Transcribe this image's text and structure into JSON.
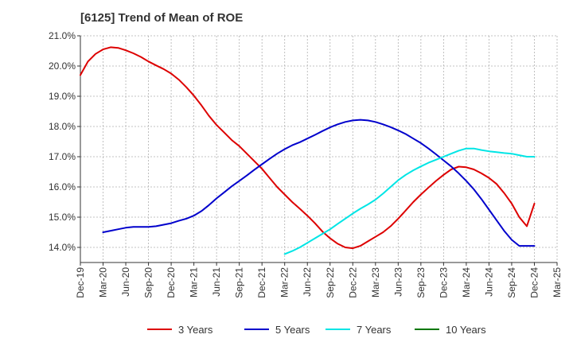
{
  "chart_data": {
    "type": "line",
    "title": "[6125]  Trend of Mean of ROE",
    "xlabel": "",
    "ylabel": "",
    "x_ticks": [
      "Dec-19",
      "Mar-20",
      "Jun-20",
      "Sep-20",
      "Dec-20",
      "Mar-21",
      "Jun-21",
      "Sep-21",
      "Dec-21",
      "Mar-22",
      "Jun-22",
      "Sep-22",
      "Dec-22",
      "Mar-23",
      "Jun-23",
      "Sep-23",
      "Dec-23",
      "Mar-24",
      "Jun-24",
      "Sep-24",
      "Dec-24",
      "Mar-25"
    ],
    "y_ticks": [
      "14.0%",
      "15.0%",
      "16.0%",
      "17.0%",
      "18.0%",
      "19.0%",
      "20.0%",
      "21.0%"
    ],
    "y_tick_values": [
      14,
      15,
      16,
      17,
      18,
      19,
      20,
      21
    ],
    "ylim": [
      13.5,
      21.0
    ],
    "grid": true,
    "legend_position": "bottom",
    "series": [
      {
        "name": "3 Years",
        "color": "#dd0000",
        "x": [
          "Dec-19",
          "Jan-20",
          "Feb-20",
          "Mar-20",
          "Apr-20",
          "May-20",
          "Jun-20",
          "Jul-20",
          "Aug-20",
          "Sep-20",
          "Oct-20",
          "Nov-20",
          "Dec-20",
          "Jan-21",
          "Feb-21",
          "Mar-21",
          "Apr-21",
          "May-21",
          "Jun-21",
          "Jul-21",
          "Aug-21",
          "Sep-21",
          "Oct-21",
          "Nov-21",
          "Dec-21",
          "Jan-22",
          "Feb-22",
          "Mar-22",
          "Apr-22",
          "May-22",
          "Jun-22",
          "Jul-22",
          "Aug-22",
          "Sep-22",
          "Oct-22",
          "Nov-22",
          "Dec-22",
          "Jan-23",
          "Feb-23",
          "Mar-23",
          "Apr-23",
          "May-23",
          "Jun-23",
          "Jul-23",
          "Aug-23",
          "Sep-23",
          "Oct-23",
          "Nov-23",
          "Dec-23",
          "Jan-24",
          "Feb-24",
          "Mar-24",
          "Apr-24",
          "May-24",
          "Jun-24",
          "Jul-24",
          "Aug-24",
          "Sep-24",
          "Oct-24",
          "Nov-24",
          "Dec-24"
        ],
        "values": [
          19.7,
          20.15,
          20.4,
          20.55,
          20.62,
          20.6,
          20.52,
          20.42,
          20.3,
          20.15,
          20.02,
          19.9,
          19.75,
          19.55,
          19.3,
          19.02,
          18.7,
          18.35,
          18.05,
          17.8,
          17.55,
          17.35,
          17.1,
          16.85,
          16.6,
          16.3,
          16.0,
          15.75,
          15.5,
          15.28,
          15.05,
          14.8,
          14.52,
          14.3,
          14.12,
          14.0,
          13.97,
          14.05,
          14.2,
          14.35,
          14.5,
          14.7,
          14.95,
          15.22,
          15.5,
          15.75,
          15.98,
          16.2,
          16.4,
          16.58,
          16.67,
          16.65,
          16.58,
          16.45,
          16.3,
          16.1,
          15.8,
          15.45,
          15.0,
          14.7,
          15.45
        ]
      },
      {
        "name": "5 Years",
        "color": "#0000cc",
        "x": [
          "Mar-20",
          "Apr-20",
          "May-20",
          "Jun-20",
          "Jul-20",
          "Aug-20",
          "Sep-20",
          "Oct-20",
          "Nov-20",
          "Dec-20",
          "Jan-21",
          "Feb-21",
          "Mar-21",
          "Apr-21",
          "May-21",
          "Jun-21",
          "Jul-21",
          "Aug-21",
          "Sep-21",
          "Oct-21",
          "Nov-21",
          "Dec-21",
          "Jan-22",
          "Feb-22",
          "Mar-22",
          "Apr-22",
          "May-22",
          "Jun-22",
          "Jul-22",
          "Aug-22",
          "Sep-22",
          "Oct-22",
          "Nov-22",
          "Dec-22",
          "Jan-23",
          "Feb-23",
          "Mar-23",
          "Apr-23",
          "May-23",
          "Jun-23",
          "Jul-23",
          "Aug-23",
          "Sep-23",
          "Oct-23",
          "Nov-23",
          "Dec-23",
          "Jan-24",
          "Feb-24",
          "Mar-24",
          "Apr-24",
          "May-24",
          "Jun-24",
          "Jul-24",
          "Aug-24",
          "Sep-24",
          "Oct-24",
          "Nov-24",
          "Dec-24"
        ],
        "values": [
          14.5,
          14.55,
          14.6,
          14.65,
          14.68,
          14.68,
          14.68,
          14.7,
          14.75,
          14.8,
          14.88,
          14.95,
          15.05,
          15.2,
          15.4,
          15.62,
          15.82,
          16.02,
          16.2,
          16.38,
          16.57,
          16.75,
          16.93,
          17.1,
          17.25,
          17.38,
          17.48,
          17.6,
          17.72,
          17.85,
          17.97,
          18.07,
          18.15,
          18.2,
          18.22,
          18.2,
          18.15,
          18.07,
          17.98,
          17.87,
          17.75,
          17.6,
          17.45,
          17.27,
          17.08,
          16.88,
          16.68,
          16.45,
          16.2,
          15.92,
          15.6,
          15.25,
          14.9,
          14.55,
          14.25,
          14.05,
          14.05,
          14.05
        ]
      },
      {
        "name": "7 Years",
        "color": "#00e5e5",
        "x": [
          "Mar-22",
          "Apr-22",
          "May-22",
          "Jun-22",
          "Jul-22",
          "Aug-22",
          "Sep-22",
          "Oct-22",
          "Nov-22",
          "Dec-22",
          "Jan-23",
          "Feb-23",
          "Mar-23",
          "Apr-23",
          "May-23",
          "Jun-23",
          "Jul-23",
          "Aug-23",
          "Sep-23",
          "Oct-23",
          "Nov-23",
          "Dec-23",
          "Jan-24",
          "Feb-24",
          "Mar-24",
          "Apr-24",
          "May-24",
          "Jun-24",
          "Jul-24",
          "Aug-24",
          "Sep-24",
          "Oct-24",
          "Nov-24",
          "Dec-24"
        ],
        "values": [
          13.78,
          13.88,
          14.0,
          14.15,
          14.3,
          14.45,
          14.6,
          14.78,
          14.95,
          15.12,
          15.28,
          15.42,
          15.58,
          15.78,
          16.0,
          16.22,
          16.4,
          16.55,
          16.68,
          16.8,
          16.9,
          17.0,
          17.1,
          17.2,
          17.27,
          17.27,
          17.22,
          17.18,
          17.15,
          17.12,
          17.1,
          17.05,
          17.0,
          17.0
        ]
      },
      {
        "name": "10 Years",
        "color": "#007700",
        "x": [],
        "values": []
      }
    ]
  }
}
